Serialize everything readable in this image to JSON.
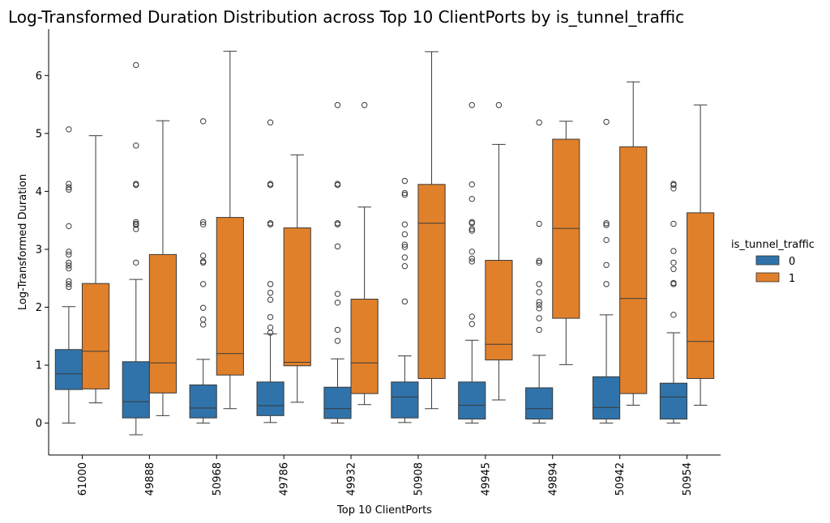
{
  "chart_data": {
    "type": "boxplot",
    "title": "Log-Transformed Duration Distribution across Top 10 ClientPorts by is_tunnel_traffic",
    "xlabel": "Top 10 ClientPorts",
    "ylabel": "Log-Transformed Duration",
    "categories": [
      "61000",
      "49888",
      "50968",
      "49786",
      "49932",
      "50908",
      "49945",
      "49894",
      "50942",
      "50954"
    ],
    "ylim": [
      -0.55,
      6.8
    ],
    "yticks": [
      0,
      1,
      2,
      3,
      4,
      5,
      6
    ],
    "ytick_labels": [
      "0",
      "1",
      "2",
      "3",
      "4",
      "5",
      "6"
    ],
    "legend": {
      "title": "is_tunnel_traffic",
      "position": "right"
    },
    "series": [
      {
        "name": "0",
        "color": "#2f73aa",
        "boxes": [
          {
            "q1": 0.58,
            "median": 0.85,
            "q3": 1.27,
            "whisker_low": 0.0,
            "whisker_high": 2.01,
            "outliers": [
              2.35,
              2.4,
              2.45,
              2.67,
              2.72,
              2.77,
              2.91,
              2.96,
              3.4,
              4.03,
              4.07,
              4.13,
              5.07
            ]
          },
          {
            "q1": 0.09,
            "median": 0.37,
            "q3": 1.06,
            "whisker_low": -0.2,
            "whisker_high": 2.48,
            "outliers": [
              2.77,
              3.35,
              3.42,
              3.44,
              3.47,
              4.11,
              4.13,
              4.79,
              6.18
            ]
          },
          {
            "q1": 0.09,
            "median": 0.26,
            "q3": 0.66,
            "whisker_low": 0.0,
            "whisker_high": 1.1,
            "outliers": [
              1.7,
              1.79,
              1.99,
              2.4,
              2.77,
              2.79,
              2.89,
              3.43,
              3.47,
              5.21
            ]
          },
          {
            "q1": 0.13,
            "median": 0.3,
            "q3": 0.71,
            "whisker_low": 0.01,
            "whisker_high": 1.54,
            "outliers": [
              1.56,
              1.65,
              1.83,
              2.13,
              2.25,
              2.4,
              3.43,
              3.45,
              4.11,
              4.13,
              5.19
            ]
          },
          {
            "q1": 0.08,
            "median": 0.25,
            "q3": 0.62,
            "whisker_low": 0.0,
            "whisker_high": 1.11,
            "outliers": [
              1.42,
              1.61,
              2.08,
              2.23,
              3.05,
              3.43,
              3.45,
              4.11,
              4.13,
              5.49
            ]
          },
          {
            "q1": 0.09,
            "median": 0.45,
            "q3": 0.71,
            "whisker_low": 0.01,
            "whisker_high": 1.16,
            "outliers": [
              2.1,
              2.71,
              2.86,
              3.04,
              3.08,
              3.26,
              3.43,
              3.94,
              3.97,
              4.18
            ]
          },
          {
            "q1": 0.07,
            "median": 0.31,
            "q3": 0.71,
            "whisker_low": 0.0,
            "whisker_high": 1.43,
            "outliers": [
              1.71,
              1.84,
              2.79,
              2.84,
              2.96,
              3.32,
              3.35,
              3.45,
              3.47,
              3.87,
              4.12,
              5.49
            ]
          },
          {
            "q1": 0.07,
            "median": 0.25,
            "q3": 0.61,
            "whisker_low": 0.0,
            "whisker_high": 1.17,
            "outliers": [
              1.61,
              1.81,
              1.98,
              2.04,
              2.09,
              2.26,
              2.4,
              2.77,
              2.8,
              3.44,
              5.19
            ]
          },
          {
            "q1": 0.07,
            "median": 0.27,
            "q3": 0.8,
            "whisker_low": 0.0,
            "whisker_high": 1.87,
            "outliers": [
              2.4,
              2.73,
              3.16,
              3.42,
              3.45,
              5.2
            ]
          },
          {
            "q1": 0.07,
            "median": 0.45,
            "q3": 0.69,
            "whisker_low": 0.0,
            "whisker_high": 1.56,
            "outliers": [
              1.87,
              2.4,
              2.42,
              2.66,
              2.77,
              2.97,
              3.44,
              4.05,
              4.11,
              4.13
            ]
          }
        ]
      },
      {
        "name": "1",
        "color": "#e1802a",
        "boxes": [
          {
            "q1": 0.59,
            "median": 1.24,
            "q3": 2.41,
            "whisker_low": 0.35,
            "whisker_high": 4.96,
            "outliers": []
          },
          {
            "q1": 0.52,
            "median": 1.04,
            "q3": 2.91,
            "whisker_low": 0.13,
            "whisker_high": 5.22,
            "outliers": []
          },
          {
            "q1": 0.83,
            "median": 1.2,
            "q3": 3.55,
            "whisker_low": 0.25,
            "whisker_high": 6.42,
            "outliers": []
          },
          {
            "q1": 0.99,
            "median": 1.05,
            "q3": 3.37,
            "whisker_low": 0.36,
            "whisker_high": 4.63,
            "outliers": []
          },
          {
            "q1": 0.51,
            "median": 1.04,
            "q3": 2.14,
            "whisker_low": 0.32,
            "whisker_high": 3.73,
            "outliers": [
              5.49
            ]
          },
          {
            "q1": 0.77,
            "median": 3.45,
            "q3": 4.12,
            "whisker_low": 0.25,
            "whisker_high": 6.41,
            "outliers": []
          },
          {
            "q1": 1.09,
            "median": 1.36,
            "q3": 2.81,
            "whisker_low": 0.4,
            "whisker_high": 4.81,
            "outliers": [
              5.49
            ]
          },
          {
            "q1": 1.81,
            "median": 3.36,
            "q3": 4.9,
            "whisker_low": 1.01,
            "whisker_high": 5.21,
            "outliers": []
          },
          {
            "q1": 0.51,
            "median": 2.15,
            "q3": 4.77,
            "whisker_low": 0.31,
            "whisker_high": 5.89,
            "outliers": []
          },
          {
            "q1": 0.77,
            "median": 1.41,
            "q3": 3.63,
            "whisker_low": 0.31,
            "whisker_high": 5.49,
            "outliers": []
          }
        ]
      }
    ]
  }
}
